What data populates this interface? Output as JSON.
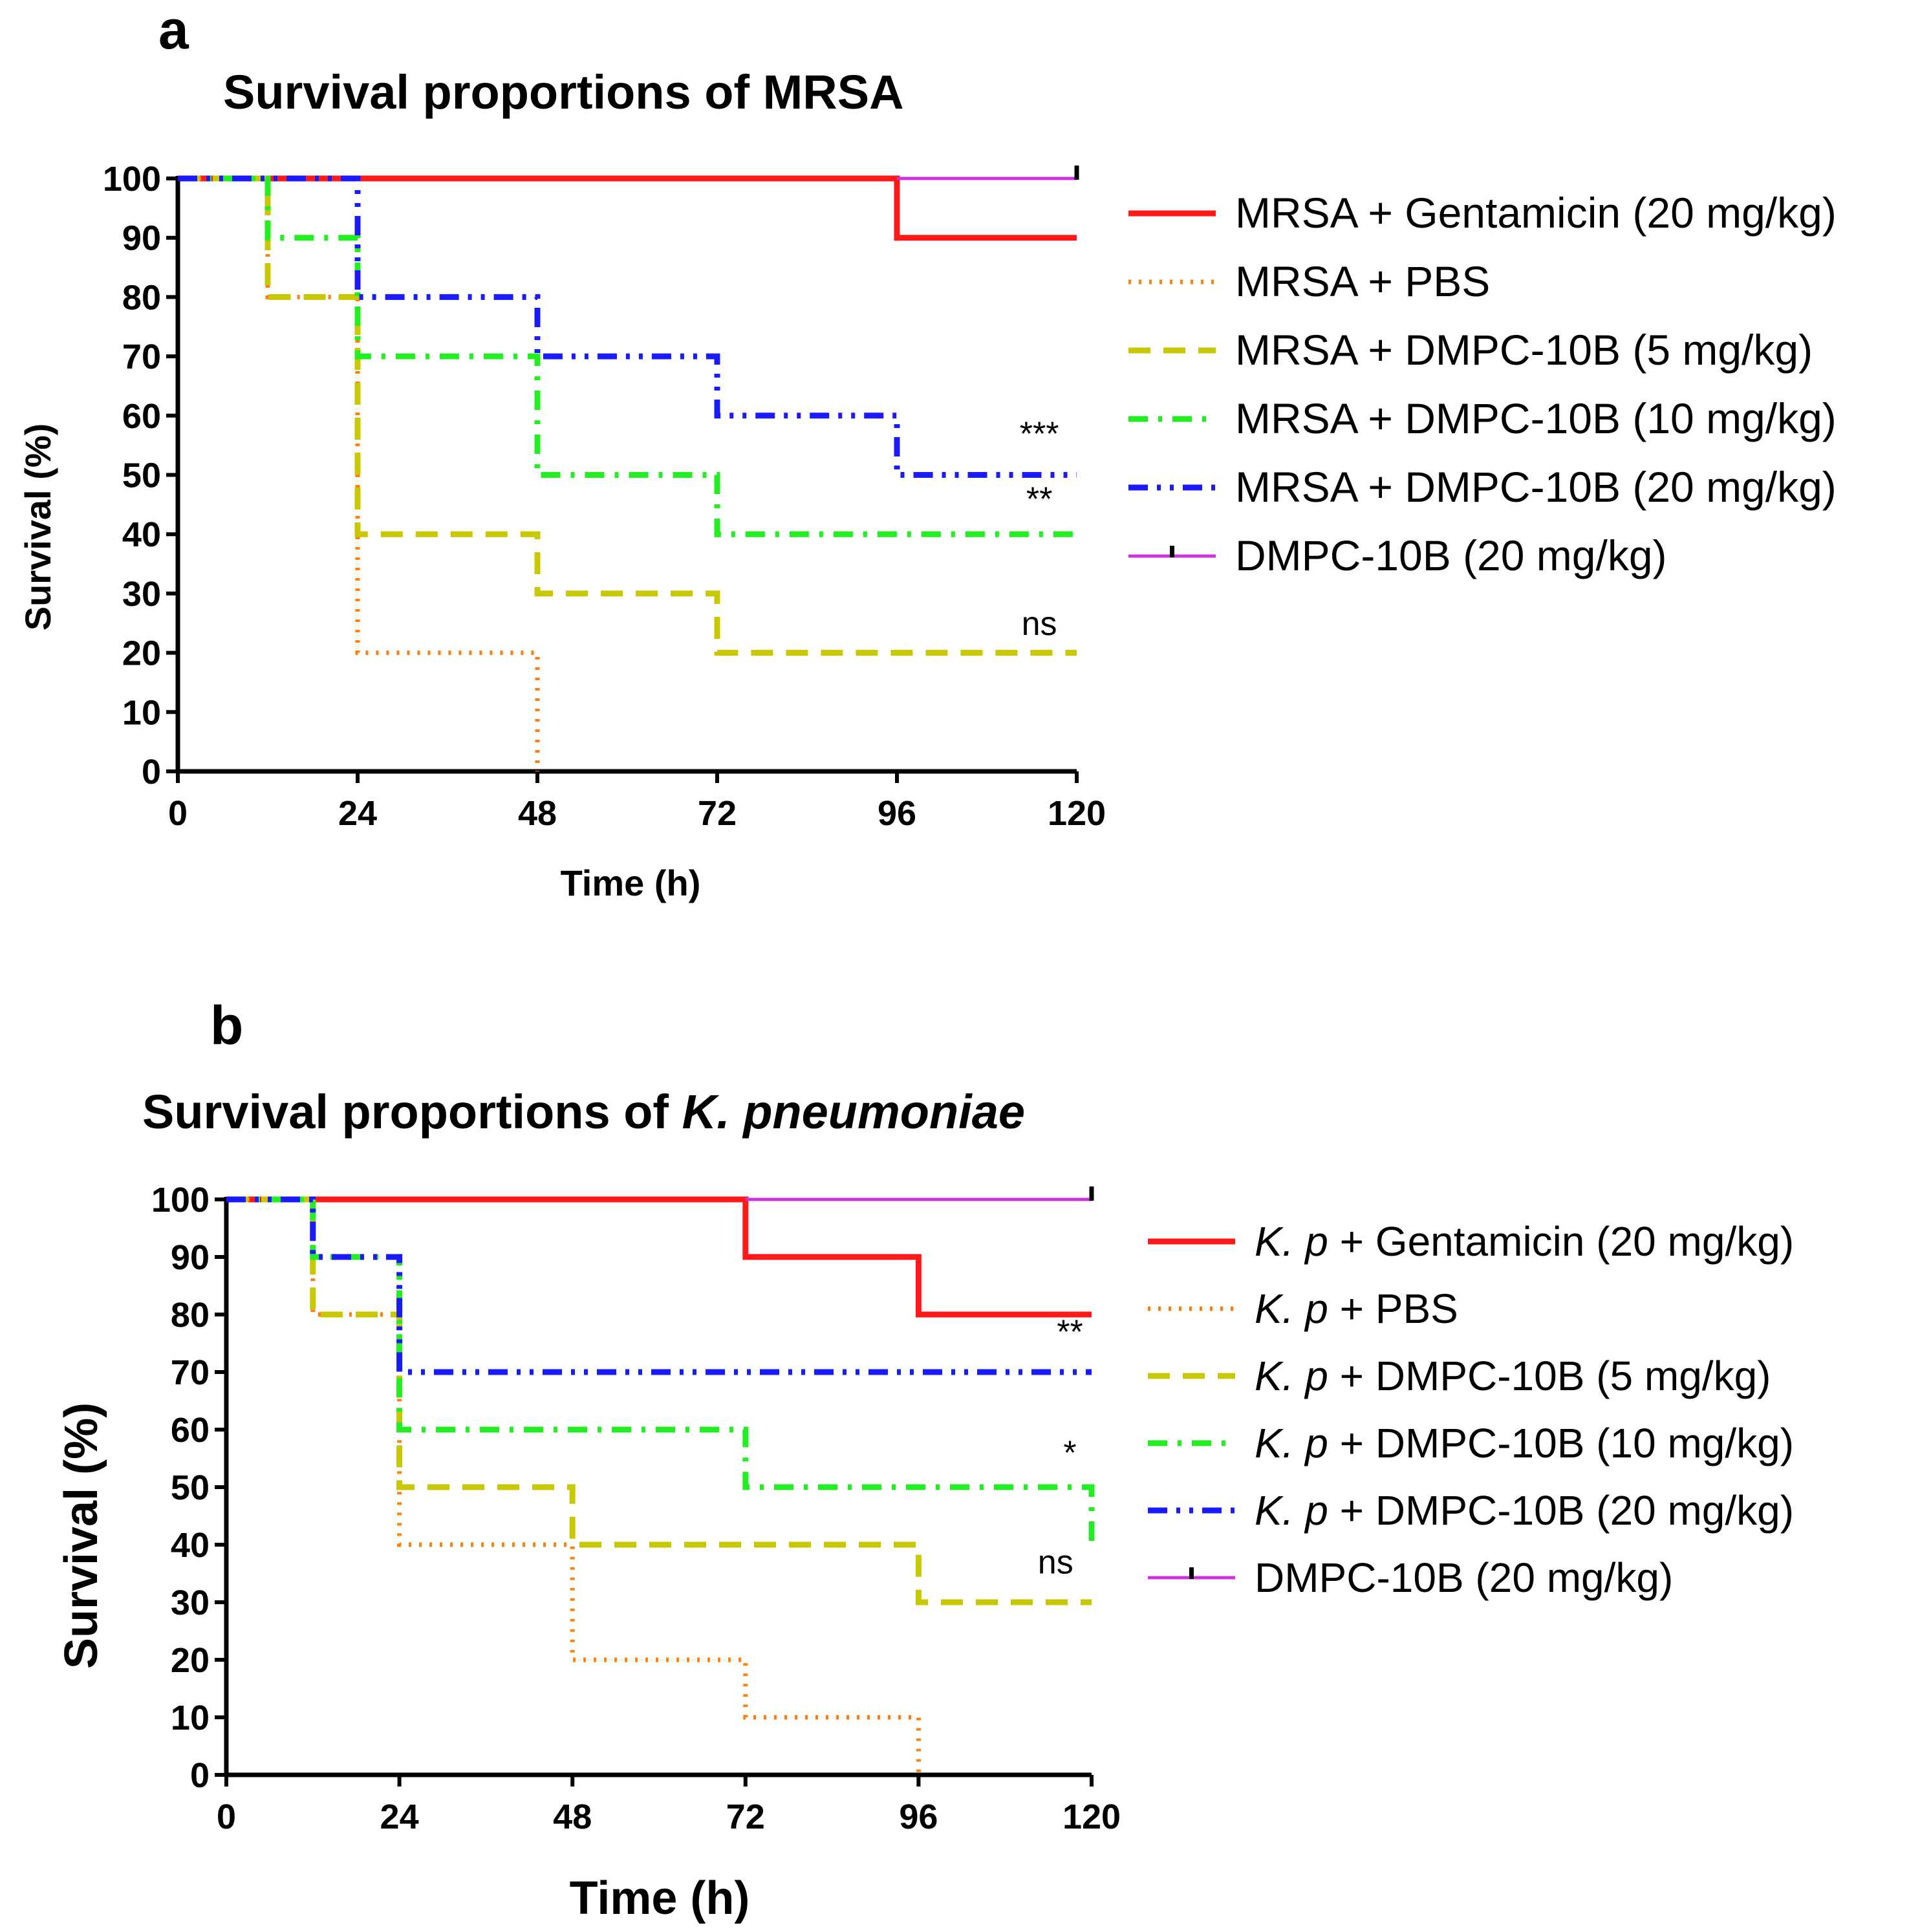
{
  "chart_data": [
    {
      "type": "line",
      "panel": "a",
      "title": "Survival proportions of MRSA",
      "xlabel": "Time (h)",
      "ylabel": "Survival (%)",
      "xlim": [
        0,
        120
      ],
      "ylim": [
        0,
        100
      ],
      "xticks": [
        0,
        24,
        48,
        72,
        96,
        120
      ],
      "yticks": [
        0,
        10,
        20,
        30,
        40,
        50,
        60,
        70,
        80,
        90,
        100
      ],
      "legend_position": "right",
      "series": [
        {
          "name_prefix": "",
          "name_italic": "",
          "name": "MRSA + Gentamicin (20 mg/kg)",
          "color": "#ff1a1a",
          "style": "solid",
          "x": [
            0,
            96,
            96,
            120
          ],
          "y": [
            100,
            100,
            90,
            90
          ]
        },
        {
          "name_prefix": "",
          "name_italic": "",
          "name": "MRSA + PBS",
          "color": "#ff7f0e",
          "style": "dotted",
          "x": [
            0,
            12,
            12,
            24,
            24,
            48,
            48
          ],
          "y": [
            100,
            100,
            80,
            80,
            20,
            20,
            0
          ]
        },
        {
          "name_prefix": "",
          "name_italic": "",
          "name": "MRSA + DMPC-10B (5 mg/kg)",
          "color": "#c8c800",
          "style": "dashed",
          "x": [
            0,
            12,
            12,
            24,
            24,
            48,
            48,
            72,
            72,
            120
          ],
          "y": [
            100,
            100,
            80,
            80,
            40,
            40,
            30,
            30,
            20,
            20
          ]
        },
        {
          "name_prefix": "",
          "name_italic": "",
          "name": "MRSA + DMPC-10B (10 mg/kg)",
          "color": "#22ee22",
          "style": "dashdot",
          "x": [
            0,
            12,
            12,
            24,
            24,
            48,
            48,
            72,
            72,
            120
          ],
          "y": [
            100,
            100,
            90,
            90,
            70,
            70,
            50,
            50,
            40,
            40
          ]
        },
        {
          "name_prefix": "",
          "name_italic": "",
          "name": "MRSA + DMPC-10B (20 mg/kg)",
          "color": "#1a1aff",
          "style": "dashdotdot",
          "x": [
            0,
            24,
            24,
            48,
            48,
            72,
            72,
            96,
            96,
            120
          ],
          "y": [
            100,
            100,
            80,
            80,
            70,
            70,
            60,
            60,
            50,
            50
          ]
        },
        {
          "name_prefix": "",
          "name_italic": "",
          "name": "DMPC-10B (20 mg/kg)",
          "color": "#cc33dd",
          "style": "solid-thin",
          "x": [
            96,
            120
          ],
          "y": [
            100,
            100
          ]
        }
      ],
      "annotations": [
        {
          "text": "***",
          "x": 115,
          "y": 55
        },
        {
          "text": "**",
          "x": 115,
          "y": 44
        },
        {
          "text": "ns",
          "x": 115,
          "y": 23
        }
      ]
    },
    {
      "type": "line",
      "panel": "b",
      "title_prefix": "Survival proportions of ",
      "title_italic": "K. pneumoniae",
      "xlabel": "Time (h)",
      "ylabel": "Survival (%)",
      "xlim": [
        0,
        120
      ],
      "ylim": [
        0,
        100
      ],
      "xticks": [
        0,
        24,
        48,
        72,
        96,
        120
      ],
      "yticks": [
        0,
        10,
        20,
        30,
        40,
        50,
        60,
        70,
        80,
        90,
        100
      ],
      "legend_position": "right",
      "series": [
        {
          "name_italic": "K. p",
          "name": " + Gentamicin (20 mg/kg)",
          "color": "#ff1a1a",
          "style": "solid",
          "x": [
            0,
            72,
            72,
            96,
            96,
            120
          ],
          "y": [
            100,
            100,
            90,
            90,
            80,
            80
          ]
        },
        {
          "name_italic": "K. p",
          "name": " + PBS",
          "color": "#ff7f0e",
          "style": "dotted",
          "x": [
            0,
            12,
            12,
            24,
            24,
            48,
            48,
            72,
            72,
            96,
            96
          ],
          "y": [
            100,
            100,
            80,
            80,
            40,
            40,
            20,
            20,
            10,
            10,
            0
          ]
        },
        {
          "name_italic": "K. p",
          "name": " + DMPC-10B (5 mg/kg)",
          "color": "#c8c800",
          "style": "dashed",
          "x": [
            0,
            12,
            12,
            24,
            24,
            48,
            48,
            96,
            96,
            120
          ],
          "y": [
            100,
            100,
            80,
            80,
            50,
            50,
            40,
            40,
            30,
            30
          ]
        },
        {
          "name_italic": "K. p",
          "name": " + DMPC-10B (10 mg/kg)",
          "color": "#22ee22",
          "style": "dashdot",
          "x": [
            0,
            12,
            12,
            24,
            24,
            72,
            72,
            120,
            120
          ],
          "y": [
            100,
            100,
            90,
            90,
            60,
            60,
            50,
            50,
            40
          ]
        },
        {
          "name_italic": "K. p",
          "name": " + DMPC-10B (20 mg/kg)",
          "color": "#1a1aff",
          "style": "dashdotdot",
          "x": [
            0,
            12,
            12,
            24,
            24,
            120
          ],
          "y": [
            100,
            100,
            90,
            90,
            70,
            70
          ]
        },
        {
          "name_italic": "",
          "name": "DMPC-10B (20 mg/kg)",
          "color": "#cc33dd",
          "style": "solid-thin",
          "x": [
            72,
            120
          ],
          "y": [
            100,
            100
          ]
        }
      ],
      "annotations": [
        {
          "text": "**",
          "x": 117,
          "y": 75
        },
        {
          "text": "*",
          "x": 117,
          "y": 54
        },
        {
          "text": "ns",
          "x": 115,
          "y": 35
        }
      ]
    }
  ],
  "panel_letters": [
    "a",
    "b"
  ]
}
